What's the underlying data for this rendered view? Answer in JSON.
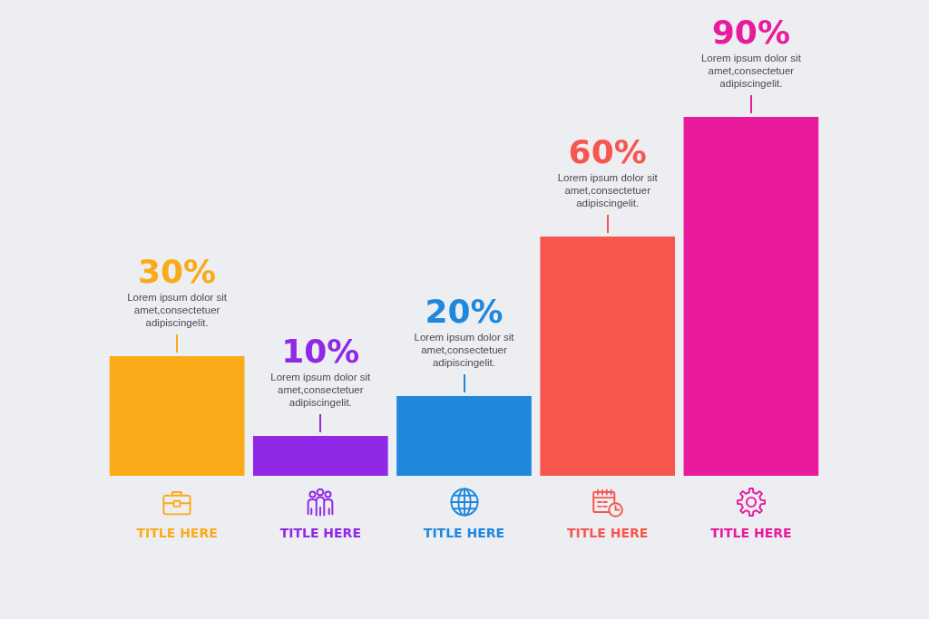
{
  "chart_data": {
    "type": "bar",
    "categories": [
      "TITLE HERE",
      "TITLE HERE",
      "TITLE HERE",
      "TITLE HERE",
      "TITLE HERE"
    ],
    "values": [
      30,
      10,
      20,
      60,
      90
    ],
    "colors": [
      "#fbab1a",
      "#9028e6",
      "#1f88dd",
      "#f7564f",
      "#ea1a9c"
    ],
    "value_labels": [
      "30%",
      "10%",
      "20%",
      "60%",
      "90%"
    ],
    "annotations": [
      "Lorem ipsum dolor sit amet,consectetuer adipiscingelit.",
      "Lorem ipsum dolor sit amet,consectetuer adipiscingelit.",
      "Lorem ipsum dolor sit amet,consectetuer adipiscingelit.",
      "Lorem ipsum dolor sit amet,consectetuer adipiscingelit.",
      "Lorem ipsum dolor sit amet,consectetuer adipiscingelit."
    ]
  }
}
